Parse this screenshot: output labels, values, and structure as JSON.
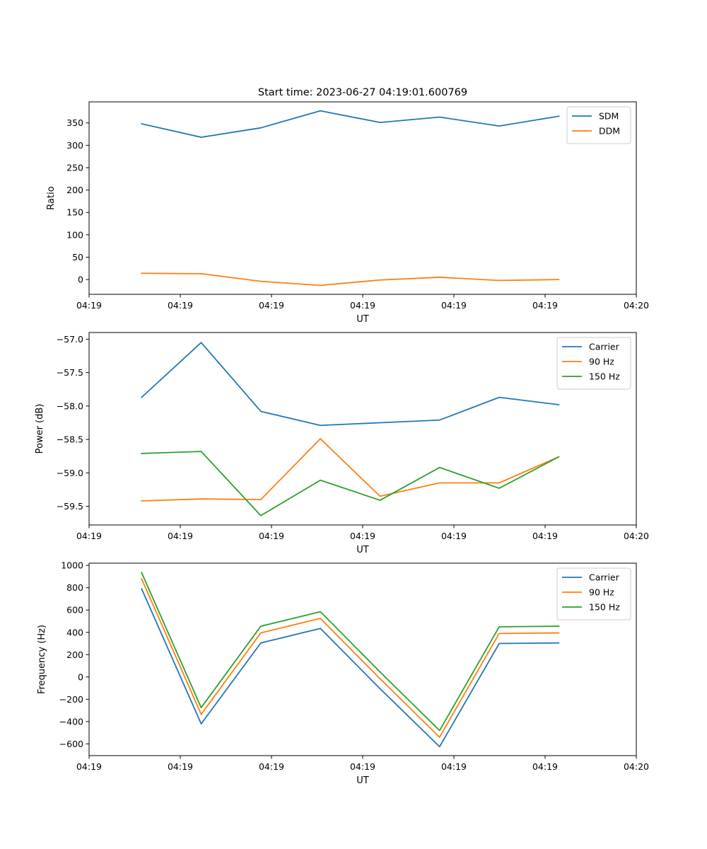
{
  "chart_data": [
    {
      "type": "line",
      "title": "Start time: 2023-06-27 04:19:01.600769",
      "xlabel": "UT",
      "ylabel": "Ratio",
      "x_seconds": [
        15.76,
        22.29,
        28.83,
        35.36,
        41.9,
        48.43,
        54.97,
        61.5
      ],
      "xlim_seconds": [
        10,
        70
      ],
      "x_tick_seconds": [
        10,
        20,
        30,
        40,
        50,
        60,
        70
      ],
      "x_tick_labels": [
        "04:19",
        "04:19",
        "04:19",
        "04:19",
        "04:19",
        "04:19",
        "04:20"
      ],
      "ylim": [
        -33,
        397
      ],
      "y_ticks": [
        0,
        50,
        100,
        150,
        200,
        250,
        300,
        350
      ],
      "y_tick_labels": [
        "0",
        "50",
        "100",
        "150",
        "200",
        "250",
        "300",
        "350"
      ],
      "legend_position": "top-right",
      "series": [
        {
          "name": "SDM",
          "color": "#1f77b4",
          "values": [
            348,
            318,
            339,
            377,
            351,
            363,
            343,
            365
          ]
        },
        {
          "name": "DDM",
          "color": "#ff7f0e",
          "values": [
            14,
            13,
            -4,
            -13,
            -1,
            5,
            -2,
            0
          ]
        }
      ]
    },
    {
      "type": "line",
      "title": "",
      "xlabel": "UT",
      "ylabel": "Power (dB)",
      "x_seconds": [
        15.76,
        22.29,
        28.83,
        35.36,
        41.9,
        48.43,
        54.97,
        61.5
      ],
      "xlim_seconds": [
        10,
        70
      ],
      "x_tick_seconds": [
        10,
        20,
        30,
        40,
        50,
        60,
        70
      ],
      "x_tick_labels": [
        "04:19",
        "04:19",
        "04:19",
        "04:19",
        "04:19",
        "04:19",
        "04:20"
      ],
      "ylim": [
        -59.78,
        -56.9
      ],
      "y_ticks": [
        -57.0,
        -57.5,
        -58.0,
        -58.5,
        -59.0,
        -59.5
      ],
      "y_tick_labels": [
        "−57.0",
        "−57.5",
        "−58.0",
        "−58.5",
        "−59.0",
        "−59.5"
      ],
      "legend_position": "top-right",
      "series": [
        {
          "name": "Carrier",
          "color": "#1f77b4",
          "values": [
            -57.87,
            -57.05,
            -58.08,
            -58.29,
            -58.25,
            -58.21,
            -57.87,
            -57.98
          ]
        },
        {
          "name": "90 Hz",
          "color": "#ff7f0e",
          "values": [
            -59.42,
            -59.39,
            -59.4,
            -58.49,
            -59.35,
            -59.15,
            -59.15,
            -58.76
          ]
        },
        {
          "name": "150 Hz",
          "color": "#2ca02c",
          "values": [
            -58.71,
            -58.68,
            -59.64,
            -59.11,
            -59.41,
            -58.92,
            -59.23,
            -58.76
          ]
        }
      ]
    },
    {
      "type": "line",
      "title": "",
      "xlabel": "UT",
      "ylabel": "Frequency (Hz)",
      "x_seconds": [
        15.76,
        22.29,
        28.83,
        35.36,
        41.9,
        48.43,
        54.97,
        61.5
      ],
      "xlim_seconds": [
        10,
        70
      ],
      "x_tick_seconds": [
        10,
        20,
        30,
        40,
        50,
        60,
        70
      ],
      "x_tick_labels": [
        "04:19",
        "04:19",
        "04:19",
        "04:19",
        "04:19",
        "04:19",
        "04:20"
      ],
      "ylim": [
        -705,
        1020
      ],
      "y_ticks": [
        -600,
        -400,
        -200,
        0,
        200,
        400,
        600,
        800,
        1000
      ],
      "y_tick_labels": [
        "−600",
        "−400",
        "−200",
        "0",
        "200",
        "400",
        "600",
        "800",
        "1000"
      ],
      "legend_position": "top-right",
      "series": [
        {
          "name": "Carrier",
          "color": "#1f77b4",
          "values": [
            790,
            -420,
            305,
            435,
            -105,
            -625,
            300,
            305
          ]
        },
        {
          "name": "90 Hz",
          "color": "#ff7f0e",
          "values": [
            880,
            -335,
            395,
            525,
            -15,
            -540,
            390,
            395
          ]
        },
        {
          "name": "150 Hz",
          "color": "#2ca02c",
          "values": [
            935,
            -275,
            455,
            585,
            45,
            -480,
            450,
            455
          ]
        }
      ]
    }
  ]
}
